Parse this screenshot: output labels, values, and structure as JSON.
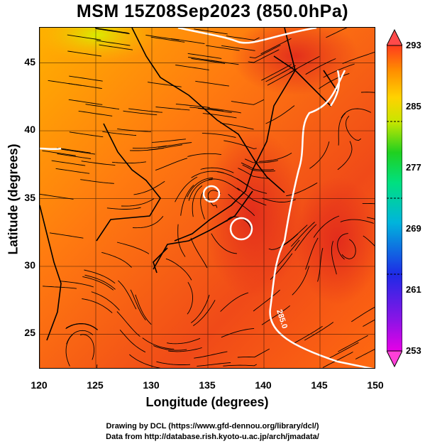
{
  "title": "MSM 15Z08Sep2023 (850.0hPa)",
  "x_axis": {
    "label": "Longitude (degrees)",
    "ticks": [
      "120",
      "125",
      "130",
      "135",
      "140",
      "145",
      "150"
    ],
    "range": [
      120,
      150
    ]
  },
  "y_axis": {
    "label": "Latitude  (degrees)",
    "ticks": [
      "25",
      "30",
      "35",
      "40",
      "45"
    ],
    "range": [
      22.4,
      47.6
    ]
  },
  "colorbar": {
    "ticks": [
      "293",
      "285",
      "277",
      "269",
      "261",
      "253"
    ],
    "range": [
      253,
      293
    ],
    "colors": [
      "#e600e6",
      "#1e2ae6",
      "#00b4dc",
      "#00e080",
      "#20d020",
      "#c8e600",
      "#ffd200",
      "#ff8c00",
      "#ff3c1e"
    ]
  },
  "contour_label": "285.0",
  "footer": {
    "line1": "Drawing by DCL (https://www.gfd-dennou.org/library/dcl/)",
    "line2": "Data from http://database.rish.kyoto-u.ac.jp/arch/jmadata/"
  },
  "map": {
    "fill_colors": [
      "#ffa000",
      "#ff6a10",
      "#f03a18",
      "#e0f000",
      "#ff8a00"
    ]
  }
}
